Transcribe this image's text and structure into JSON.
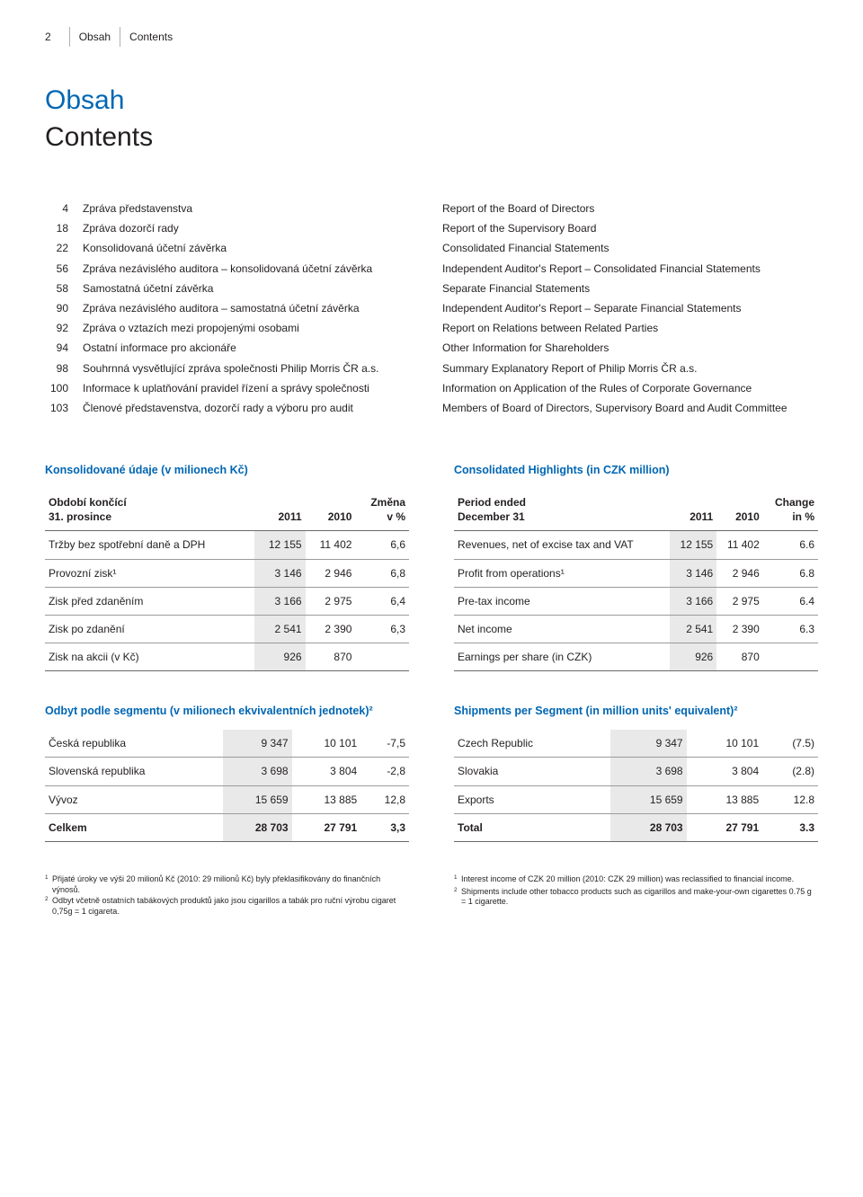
{
  "page_number": "2",
  "breadcrumb": {
    "cz": "Obsah",
    "en": "Contents"
  },
  "title": {
    "cz": "Obsah",
    "en": "Contents"
  },
  "colors": {
    "accent": "#0066b3",
    "text": "#231f20",
    "rule": "#68696b",
    "rule_light": "#9a9b9c",
    "highlight_bg": "#e9e9ea"
  },
  "toc": [
    {
      "num": "4",
      "cz": "Zpráva představenstva",
      "en": "Report of the Board of Directors"
    },
    {
      "num": "18",
      "cz": "Zpráva dozorčí rady",
      "en": "Report of the Supervisory Board"
    },
    {
      "num": "22",
      "cz": "Konsolidovaná účetní závěrka",
      "en": "Consolidated Financial Statements"
    },
    {
      "num": "56",
      "cz": "Zpráva nezávislého auditora – konsolidovaná účetní závěrka",
      "en": "Independent Auditor's Report – Consolidated Financial Statements"
    },
    {
      "num": "58",
      "cz": "Samostatná účetní závěrka",
      "en": "Separate Financial Statements"
    },
    {
      "num": "90",
      "cz": "Zpráva nezávislého auditora – samostatná účetní závěrka",
      "en": "Independent Auditor's Report – Separate Financial Statements"
    },
    {
      "num": "92",
      "cz": "Zpráva o vztazích mezi propojenými osobami",
      "en": "Report on Relations between Related Parties"
    },
    {
      "num": "94",
      "cz": "Ostatní informace pro akcionáře",
      "en": "Other Information for Shareholders"
    },
    {
      "num": "98",
      "cz": "Souhrnná vysvětlující zpráva společnosti Philip Morris ČR a.s.",
      "en": "Summary Explanatory Report of Philip Morris ČR a.s."
    },
    {
      "num": "100",
      "cz": "Informace k uplatňování pravidel řízení a správy společnosti",
      "en": "Information on Application of the Rules of Corporate Governance"
    },
    {
      "num": "103",
      "cz": "Členové představenstva, dozorčí rady a výboru pro audit",
      "en": "Members of Board of Directors, Supervisory Board and Audit Committee"
    }
  ],
  "highlights": {
    "cz": {
      "title": "Konsolidované údaje (v milionech Kč)",
      "header": {
        "label1": "Období končící",
        "label2": "31. prosince",
        "c1": "2011",
        "c2": "2010",
        "c3a": "Změna",
        "c3b": "v %"
      },
      "rows": [
        {
          "label": "Tržby bez spotřební daně a DPH",
          "c1": "12 155",
          "c2": "11 402",
          "c3": "6,6"
        },
        {
          "label": "Provozní zisk¹",
          "c1": "3 146",
          "c2": "2 946",
          "c3": "6,8"
        },
        {
          "label": "Zisk před zdaněním",
          "c1": "3 166",
          "c2": "2 975",
          "c3": "6,4"
        },
        {
          "label": "Zisk po zdanění",
          "c1": "2 541",
          "c2": "2 390",
          "c3": "6,3"
        },
        {
          "label": "Zisk na akcii (v Kč)",
          "c1": "926",
          "c2": "870",
          "c3": ""
        }
      ]
    },
    "en": {
      "title": "Consolidated Highlights (in CZK million)",
      "header": {
        "label1": "Period ended",
        "label2": "December 31",
        "c1": "2011",
        "c2": "2010",
        "c3a": "Change",
        "c3b": "in %"
      },
      "rows": [
        {
          "label": "Revenues, net of excise tax and VAT",
          "c1": "12 155",
          "c2": "11 402",
          "c3": "6.6"
        },
        {
          "label": "Profit from operations¹",
          "c1": "3 146",
          "c2": "2 946",
          "c3": "6.8"
        },
        {
          "label": "Pre-tax income",
          "c1": "3 166",
          "c2": "2 975",
          "c3": "6.4"
        },
        {
          "label": "Net income",
          "c1": "2 541",
          "c2": "2 390",
          "c3": "6.3"
        },
        {
          "label": "Earnings per share (in CZK)",
          "c1": "926",
          "c2": "870",
          "c3": ""
        }
      ]
    }
  },
  "shipments": {
    "cz": {
      "title": "Odbyt podle segmentu (v milionech ekvivalentních jednotek)²",
      "rows": [
        {
          "label": "Česká republika",
          "c1": "9 347",
          "c2": "10 101",
          "c3": "-7,5"
        },
        {
          "label": "Slovenská republika",
          "c1": "3 698",
          "c2": "3 804",
          "c3": "-2,8"
        },
        {
          "label": "Vývoz",
          "c1": "15 659",
          "c2": "13 885",
          "c3": "12,8"
        }
      ],
      "total": {
        "label": "Celkem",
        "c1": "28 703",
        "c2": "27 791",
        "c3": "3,3"
      }
    },
    "en": {
      "title": "Shipments per Segment (in million units' equivalent)²",
      "rows": [
        {
          "label": "Czech Republic",
          "c1": "9 347",
          "c2": "10 101",
          "c3": "(7.5)"
        },
        {
          "label": "Slovakia",
          "c1": "3 698",
          "c2": "3 804",
          "c3": "(2.8)"
        },
        {
          "label": "Exports",
          "c1": "15 659",
          "c2": "13 885",
          "c3": "12.8"
        }
      ],
      "total": {
        "label": "Total",
        "c1": "28 703",
        "c2": "27 791",
        "c3": "3.3"
      }
    }
  },
  "footnotes": {
    "cz": [
      {
        "sup": "1",
        "txt": "Přijaté úroky ve výši 20 milionů Kč (2010: 29 milionů Kč) byly překlasifikovány do finančních výnosů."
      },
      {
        "sup": "2",
        "txt": "Odbyt včetně ostatních tabákových produktů jako jsou cigarillos a tabák pro ruční výrobu cigaret 0,75g = 1 cigareta."
      }
    ],
    "en": [
      {
        "sup": "1",
        "txt": "Interest income of CZK 20 million (2010: CZK 29 million) was reclassified to financial income."
      },
      {
        "sup": "2",
        "txt": "Shipments include other tobacco products such as cigarillos and make-your-own cigarettes 0.75 g = 1 cigarette."
      }
    ]
  }
}
